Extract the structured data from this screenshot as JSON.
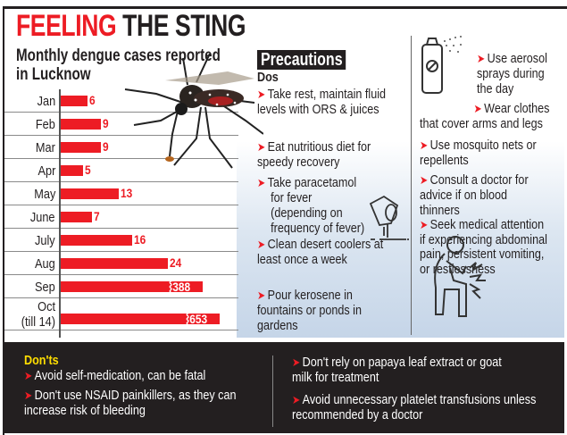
{
  "title": {
    "highlight": "FEELING",
    "rest": "THE STING"
  },
  "chart_data": {
    "type": "bar",
    "orientation": "horizontal",
    "title": "Monthly dengue cases reported in Lucknow",
    "categories": [
      "Jan",
      "Feb",
      "Mar",
      "Apr",
      "May",
      "June",
      "July",
      "Aug",
      "Sep",
      "Oct (till 14)"
    ],
    "values": [
      6,
      9,
      9,
      5,
      13,
      7,
      16,
      24,
      388,
      653
    ],
    "broken_bars": [
      "Sep",
      "Oct (till 14)"
    ],
    "bar_color": "#ed1c24",
    "label_lines": [
      [
        "Jan"
      ],
      [
        "Feb"
      ],
      [
        "Mar"
      ],
      [
        "Apr"
      ],
      [
        "May"
      ],
      [
        "June"
      ],
      [
        "July"
      ],
      [
        "Aug"
      ],
      [
        "Sep"
      ],
      [
        "Oct",
        "(till 14)"
      ]
    ]
  },
  "precautions": {
    "heading": "Precautions",
    "dos_heading": "Dos",
    "dos": [
      "Take rest, maintain fluid levels with ORS & juices",
      "Eat nutritious diet for speedy recovery",
      "Take paracetamol for fever (depending on frequency of fever)",
      "Clean desert coolers at least once a week",
      "Pour kerosene in fountains or ponds in gardens"
    ],
    "right": [
      "Use aerosol sprays during the day",
      "Wear clothes that cover arms and legs",
      "Use mosquito nets or repellents",
      "Consult a doctor for advice if on blood thinners",
      "Seek medical attention if experiencing abdominal pain, persistent vomiting, or restlessness"
    ]
  },
  "donts": {
    "heading": "Don'ts",
    "items": [
      "Avoid self-medication, can be fatal",
      "Don't use NSAID painkillers, as they can increase risk of bleeding",
      "Don't rely on papaya leaf extract or goat milk for treatment",
      "Avoid unnecessary platelet transfusions unless recommended by a doctor"
    ]
  },
  "icons": [
    "mosquito-icon",
    "aerosol-spray-icon",
    "spilled-bucket-icon",
    "abdominal-pain-person-icon",
    "arrow-bullet-icon"
  ],
  "colors": {
    "accent": "#ed1c24",
    "dark": "#231f20",
    "donts_heading": "#ffde00"
  }
}
